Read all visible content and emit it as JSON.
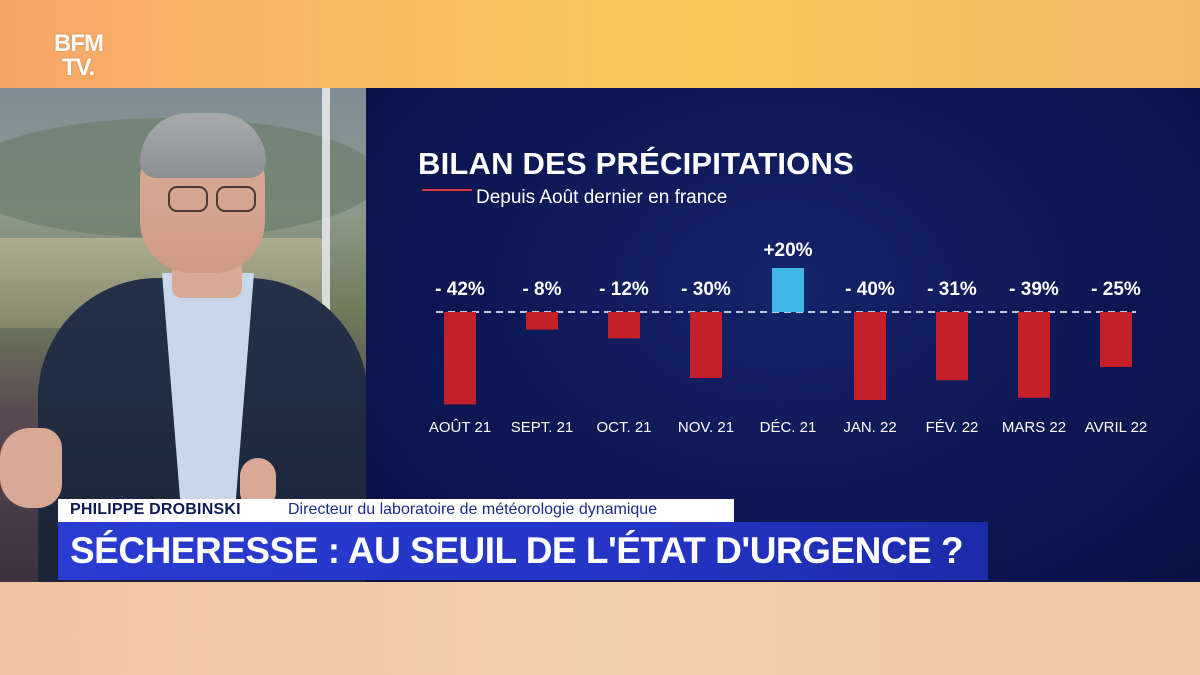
{
  "channel": {
    "logo_line1": "BFM",
    "logo_line2": "TV."
  },
  "chart_data": {
    "type": "bar",
    "title": "BILAN DES PRÉCIPITATIONS",
    "subtitle": "Depuis Août dernier en france",
    "categories": [
      "AOÛT 21",
      "SEPT. 21",
      "OCT. 21",
      "NOV. 21",
      "DÉC. 21",
      "JAN. 22",
      "FÉV. 22",
      "MARS 22",
      "AVRIL 22"
    ],
    "values": [
      -42,
      -8,
      -12,
      -30,
      20,
      -40,
      -31,
      -39,
      -25
    ],
    "value_labels": [
      "- 42%",
      "- 8%",
      "- 12%",
      "- 30%",
      "+20%",
      "- 40%",
      "- 31%",
      "- 39%",
      "- 25%"
    ],
    "unit": "%",
    "baseline": 0,
    "colors": {
      "negative": "#c4202c",
      "positive": "#3fb6e6",
      "baseline": "#ffffff"
    }
  },
  "lower_third": {
    "name": "PHILIPPE DROBINSKI",
    "role": "Directeur du laboratoire de météorologie dynamique",
    "headline": "SÉCHERESSE : AU SEUIL DE L'ÉTAT D'URGENCE ?"
  }
}
